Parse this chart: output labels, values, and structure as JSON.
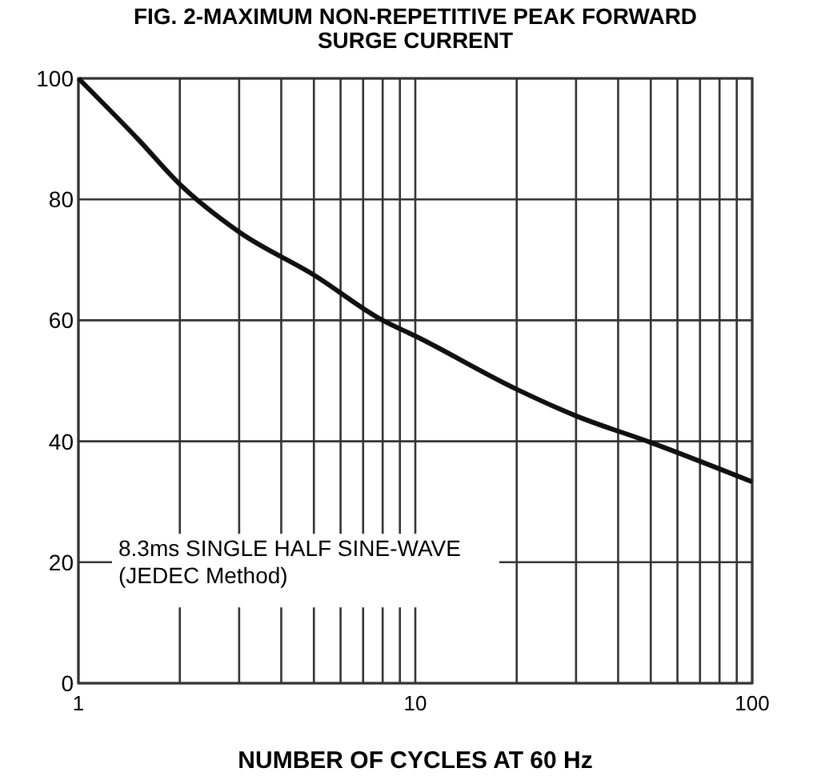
{
  "chart_data": {
    "type": "line",
    "title": "FIG. 2-MAXIMUM NON-REPETITIVE PEAK FORWARD SURGE CURRENT",
    "xlabel": "NUMBER OF CYCLES AT 60 Hz",
    "log": "x",
    "x": [
      1,
      1.5,
      2,
      3,
      5,
      8,
      10,
      20,
      30,
      50,
      100
    ],
    "series": [
      {
        "color": "#111111",
        "values": [
          100,
          90,
          82.5,
          74.6,
          67.5,
          60,
          57.4,
          48.6,
          44.2,
          39.8,
          33.3
        ]
      }
    ],
    "xlim": [
      1,
      100
    ],
    "xticks": [
      1,
      {
        "value": 2,
        "label": null
      },
      {
        "value": 3,
        "label": null
      },
      {
        "value": 4,
        "label": null
      },
      {
        "value": 5,
        "label": null
      },
      {
        "value": 6,
        "label": null
      },
      {
        "value": 7,
        "label": null
      },
      {
        "value": 8,
        "label": null
      },
      {
        "value": 9,
        "label": null
      },
      10,
      {
        "value": 20,
        "label": null
      },
      {
        "value": 30,
        "label": null
      },
      {
        "value": 40,
        "label": null
      },
      {
        "value": 50,
        "label": null
      },
      {
        "value": 60,
        "label": null
      },
      {
        "value": 70,
        "label": null
      },
      {
        "value": 80,
        "label": null
      },
      {
        "value": 90,
        "label": null
      },
      100
    ],
    "ylim": [
      0,
      100
    ],
    "yticks": [
      0,
      20,
      40,
      60,
      80,
      100
    ],
    "grid": true,
    "line_style": "solid",
    "marker": "none",
    "annotations": [
      "8.3ms SINGLE HALF SINE-WAVE\n(JEDEC Method)"
    ]
  }
}
